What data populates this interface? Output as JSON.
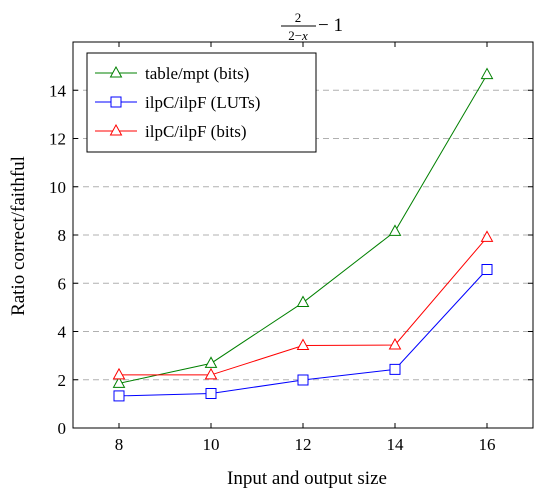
{
  "chart_data": {
    "type": "line",
    "title": {
      "numerator": "2",
      "denominator_prefix": "2−",
      "denominator_var": "x",
      "suffix": " − 1"
    },
    "xlabel": "Input and output size",
    "ylabel": "Ratio correct/faithful",
    "x": [
      8,
      10,
      12,
      14,
      16
    ],
    "xticks": [
      8,
      10,
      12,
      14,
      16
    ],
    "yticks": [
      0,
      2,
      4,
      6,
      8,
      10,
      12,
      14
    ],
    "xlim": [
      7,
      17
    ],
    "ylim": [
      0,
      16
    ],
    "grid": "horizontal-dashed",
    "legend_position": "top-left",
    "series": [
      {
        "name": "table/mpt (bits)",
        "values": [
          1.85,
          2.68,
          5.2,
          8.15,
          14.65
        ],
        "color": "#008000",
        "marker": "triangle"
      },
      {
        "name": "ilpC/ilpF (LUTs)",
        "values": [
          1.33,
          1.43,
          1.99,
          2.43,
          6.57
        ],
        "color": "#0000ff",
        "marker": "square"
      },
      {
        "name": "ilpC/ilpF (bits)",
        "values": [
          2.2,
          2.2,
          3.42,
          3.44,
          7.9
        ],
        "color": "#ff0000",
        "marker": "triangle"
      }
    ]
  }
}
